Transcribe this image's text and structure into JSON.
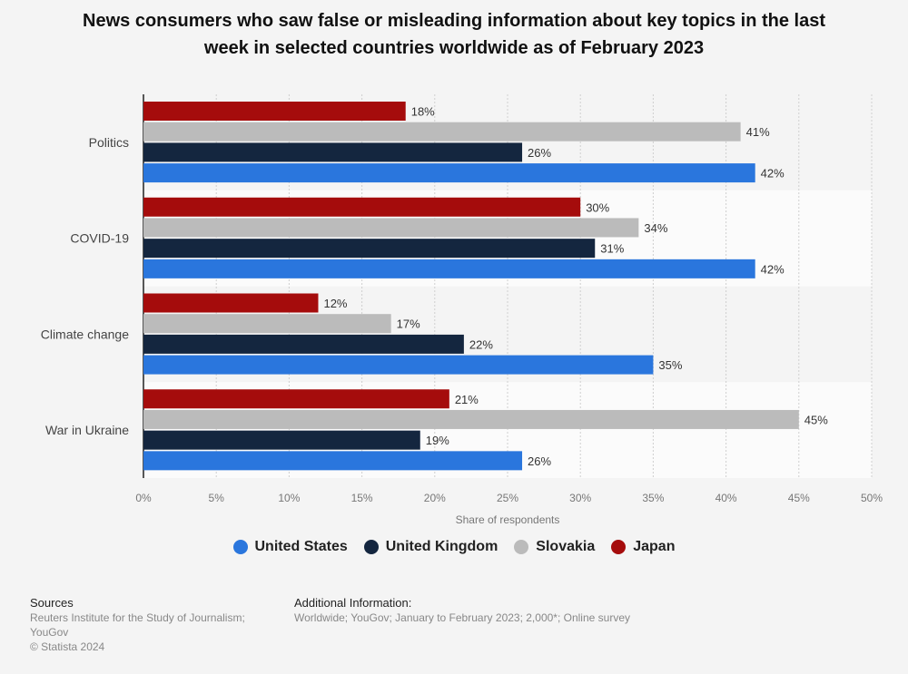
{
  "title_lines": [
    "News consumers who saw false or misleading information about key topics in the last",
    "week in selected countries worldwide as of February 2023"
  ],
  "chart_data": {
    "type": "bar",
    "orientation": "horizontal",
    "categories": [
      "Politics",
      "COVID-19",
      "Climate change",
      "War in Ukraine"
    ],
    "series": [
      {
        "name": "Japan",
        "color": "#a50c0c",
        "values": [
          18,
          30,
          12,
          21
        ]
      },
      {
        "name": "Slovakia",
        "color": "#bbbbbb",
        "values": [
          41,
          34,
          17,
          45
        ]
      },
      {
        "name": "United Kingdom",
        "color": "#14263f",
        "values": [
          26,
          31,
          22,
          19
        ]
      },
      {
        "name": "United States",
        "color": "#2a76dd",
        "values": [
          42,
          42,
          35,
          26
        ]
      }
    ],
    "value_suffix": "%",
    "xlabel": "Share of respondents",
    "xlim": [
      0,
      50
    ],
    "xticks": [
      "0%",
      "5%",
      "10%",
      "15%",
      "20%",
      "25%",
      "30%",
      "35%",
      "40%",
      "45%",
      "50%"
    ],
    "grid": true
  },
  "legend": [
    {
      "name": "United States",
      "color": "#2a76dd"
    },
    {
      "name": "United Kingdom",
      "color": "#14263f"
    },
    {
      "name": "Slovakia",
      "color": "#bbbbbb"
    },
    {
      "name": "Japan",
      "color": "#a50c0c"
    }
  ],
  "footer": {
    "sources_heading": "Sources",
    "sources_lines": [
      "Reuters Institute for the Study of Journalism;",
      "YouGov",
      "© Statista 2024"
    ],
    "additional_heading": "Additional Information:",
    "additional_text": "Worldwide; YouGov; January to February 2023; 2,000*; Online survey"
  }
}
